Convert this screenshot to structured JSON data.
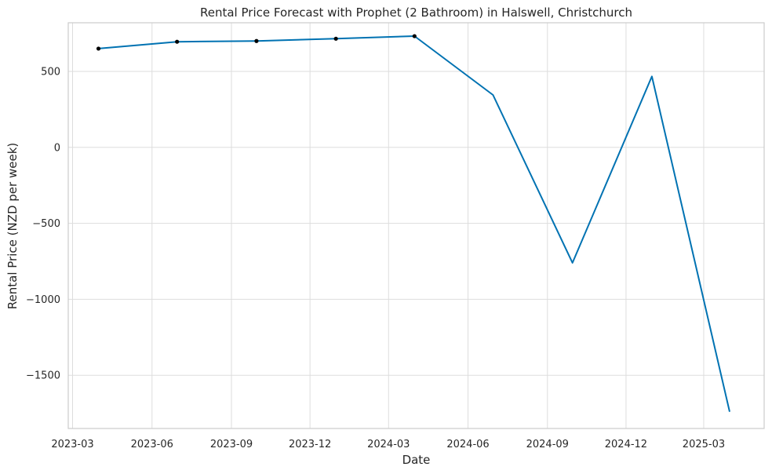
{
  "chart_data": {
    "type": "line",
    "title": "Rental Price Forecast with Prophet (2 Bathroom) in Halswell, Christchurch",
    "xlabel": "Date",
    "ylabel": "Rental Price (NZD per week)",
    "ylim": [
      -1850,
      820
    ],
    "xlim": [
      "2023-02-24",
      "2025-05-10"
    ],
    "grid": true,
    "x_ticks": [
      "2023-03",
      "2023-06",
      "2023-09",
      "2023-12",
      "2024-03",
      "2024-06",
      "2024-09",
      "2024-12",
      "2025-03"
    ],
    "y_ticks": [
      500,
      0,
      -500,
      -1000,
      -1500
    ],
    "y_tick_labels": [
      "500",
      "0",
      "−500",
      "−1000",
      "−1500"
    ],
    "series": [
      {
        "style": "line",
        "color": "#0072B2",
        "x": [
          "2023-03-31",
          "2023-06-30",
          "2023-09-30",
          "2023-12-31",
          "2024-03-31",
          "2024-06-30",
          "2024-09-30",
          "2024-12-31",
          "2025-03-31"
        ],
        "y": [
          650,
          695,
          700,
          715,
          732,
          345,
          -760,
          467,
          -1740
        ]
      },
      {
        "style": "scatter",
        "color": "#000000",
        "x": [
          "2023-03-31",
          "2023-06-30",
          "2023-09-30",
          "2023-12-31",
          "2024-03-31"
        ],
        "y": [
          650,
          695,
          700,
          715,
          732
        ]
      }
    ]
  }
}
